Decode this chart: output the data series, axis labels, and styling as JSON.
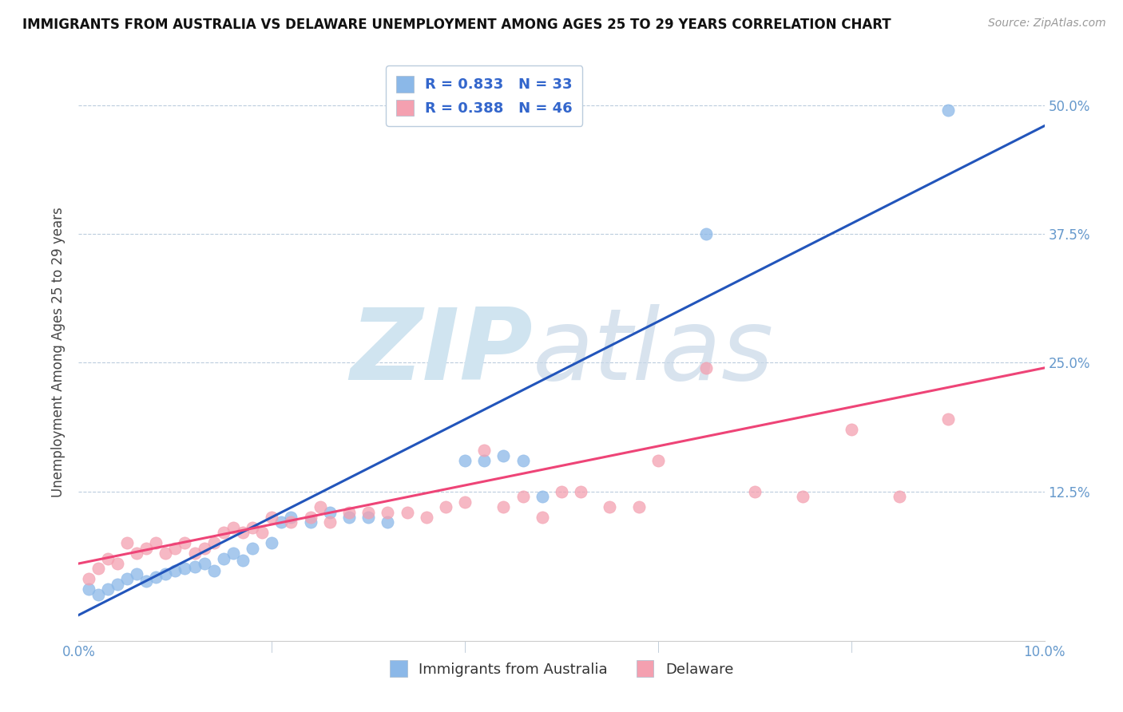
{
  "title": "IMMIGRANTS FROM AUSTRALIA VS DELAWARE UNEMPLOYMENT AMONG AGES 25 TO 29 YEARS CORRELATION CHART",
  "source": "Source: ZipAtlas.com",
  "ylabel": "Unemployment Among Ages 25 to 29 years",
  "xlim": [
    0.0,
    0.1
  ],
  "ylim": [
    -0.02,
    0.54
  ],
  "xticks": [
    0.0,
    0.1
  ],
  "xticklabels": [
    "0.0%",
    "10.0%"
  ],
  "yticks": [
    0.125,
    0.25,
    0.375,
    0.5
  ],
  "yticklabels": [
    "12.5%",
    "25.0%",
    "37.5%",
    "50.0%"
  ],
  "legend_label1": "R = 0.833   N = 33",
  "legend_label2": "R = 0.388   N = 46",
  "legend_series1": "Immigrants from Australia",
  "legend_series2": "Delaware",
  "color1": "#8BB8E8",
  "color2": "#F4A0B0",
  "trendline1_color": "#2255BB",
  "trendline2_color": "#EE4477",
  "watermark_left": "ZIP",
  "watermark_right": "atlas",
  "watermark_color": "#D0E4F0",
  "background_color": "#FFFFFF",
  "scatter1_x": [
    0.001,
    0.002,
    0.003,
    0.004,
    0.005,
    0.006,
    0.007,
    0.008,
    0.009,
    0.01,
    0.011,
    0.012,
    0.013,
    0.014,
    0.015,
    0.016,
    0.017,
    0.018,
    0.02,
    0.021,
    0.022,
    0.024,
    0.026,
    0.028,
    0.03,
    0.032,
    0.04,
    0.042,
    0.044,
    0.046,
    0.048,
    0.065,
    0.09
  ],
  "scatter1_y": [
    0.03,
    0.025,
    0.03,
    0.035,
    0.04,
    0.045,
    0.038,
    0.042,
    0.045,
    0.048,
    0.05,
    0.052,
    0.055,
    0.048,
    0.06,
    0.065,
    0.058,
    0.07,
    0.075,
    0.095,
    0.1,
    0.095,
    0.105,
    0.1,
    0.1,
    0.095,
    0.155,
    0.155,
    0.16,
    0.155,
    0.12,
    0.375,
    0.495
  ],
  "scatter2_x": [
    0.001,
    0.002,
    0.003,
    0.004,
    0.005,
    0.006,
    0.007,
    0.008,
    0.009,
    0.01,
    0.011,
    0.012,
    0.013,
    0.014,
    0.015,
    0.016,
    0.017,
    0.018,
    0.019,
    0.02,
    0.022,
    0.024,
    0.025,
    0.026,
    0.028,
    0.03,
    0.032,
    0.034,
    0.036,
    0.038,
    0.04,
    0.042,
    0.044,
    0.046,
    0.048,
    0.05,
    0.052,
    0.055,
    0.058,
    0.06,
    0.065,
    0.07,
    0.075,
    0.08,
    0.085,
    0.09
  ],
  "scatter2_y": [
    0.04,
    0.05,
    0.06,
    0.055,
    0.075,
    0.065,
    0.07,
    0.075,
    0.065,
    0.07,
    0.075,
    0.065,
    0.07,
    0.075,
    0.085,
    0.09,
    0.085,
    0.09,
    0.085,
    0.1,
    0.095,
    0.1,
    0.11,
    0.095,
    0.105,
    0.105,
    0.105,
    0.105,
    0.1,
    0.11,
    0.115,
    0.165,
    0.11,
    0.12,
    0.1,
    0.125,
    0.125,
    0.11,
    0.11,
    0.155,
    0.245,
    0.125,
    0.12,
    0.185,
    0.12,
    0.195
  ],
  "trendline1_x0": 0.0,
  "trendline1_y0": 0.005,
  "trendline1_x1": 0.1,
  "trendline1_y1": 0.48,
  "trendline2_x0": 0.0,
  "trendline2_y0": 0.055,
  "trendline2_x1": 0.1,
  "trendline2_y1": 0.245
}
